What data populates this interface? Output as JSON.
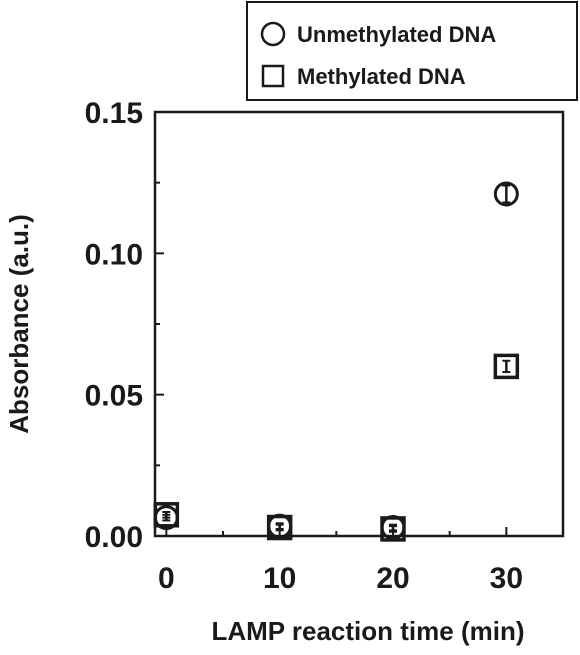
{
  "chart_data": {
    "type": "scatter",
    "title": "",
    "xlabel": "LAMP reaction time (min)",
    "ylabel": "Absorbance (a.u.)",
    "xlim": [
      -1,
      35
    ],
    "ylim": [
      0,
      0.15
    ],
    "xticks": [
      0,
      10,
      20,
      30
    ],
    "xtick_labels": [
      "0",
      "10",
      "20",
      "30"
    ],
    "yticks": [
      0.0,
      0.05,
      0.1,
      0.15
    ],
    "ytick_labels": [
      "0.00",
      "0.05",
      "0.10",
      "0.15"
    ],
    "grid": false,
    "legend_position": "top-right",
    "series": [
      {
        "name": "Unmethylated DNA",
        "marker": "circle",
        "x": [
          0,
          10,
          20,
          30
        ],
        "y": [
          0.0065,
          0.0035,
          0.003,
          0.121
        ],
        "err": [
          0.001,
          0.001,
          0.001,
          0.003
        ]
      },
      {
        "name": "Methylated DNA",
        "marker": "square",
        "x": [
          0,
          10,
          20,
          30
        ],
        "y": [
          0.0075,
          0.003,
          0.0025,
          0.06
        ],
        "err": [
          0.001,
          0.001,
          0.001,
          0.002
        ]
      }
    ],
    "colors": {
      "marker_stroke": "#1a1a1a",
      "axis": "#1a1a1a",
      "background": "#ffffff"
    }
  }
}
